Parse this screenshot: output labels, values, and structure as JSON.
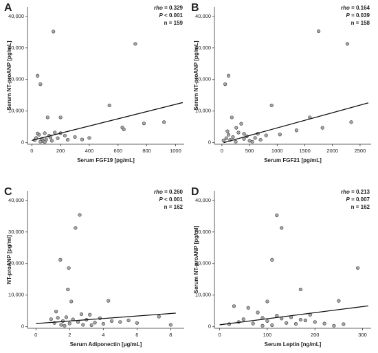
{
  "chart_data": [
    {
      "type": "scatter",
      "panel": "A",
      "color": "#a6a6a6",
      "stats": [
        {
          "symbol": "rho",
          "text": " = 0.329"
        },
        {
          "symbol": "P",
          "text": " < 0.001"
        },
        {
          "text": "n = 159"
        }
      ],
      "xlabel": "Serum FGF19 [pg/mL]",
      "ylabel": "Serum NT-proANP [pg/mL]",
      "xlim": [
        -30,
        1060
      ],
      "ylim": [
        -500,
        43000
      ],
      "xticks": [
        0,
        200,
        400,
        600,
        800,
        1000
      ],
      "yticks": [
        0,
        {
          "value": 10000,
          "label": "10,000"
        },
        {
          "value": 20000,
          "label": "20,000"
        },
        {
          "value": 30000,
          "label": "30,000"
        },
        {
          "value": 40000,
          "label": "40,000"
        }
      ],
      "x": [
        150,
        40,
        60,
        720,
        540,
        630,
        640,
        780,
        920,
        110,
        200,
        230,
        300,
        400,
        20,
        30,
        50,
        70,
        80,
        90,
        100,
        120,
        140,
        160,
        180,
        250,
        60,
        40,
        130,
        350,
        90,
        200
      ],
      "values": [
        35200,
        21200,
        18500,
        31300,
        11800,
        4800,
        4200,
        6100,
        6500,
        8000,
        8000,
        2200,
        1800,
        1500,
        800,
        1500,
        2500,
        1200,
        500,
        3000,
        1000,
        2200,
        600,
        3200,
        1400,
        900,
        300,
        2900,
        1700,
        1000,
        200,
        3000
      ],
      "fit": {
        "x": [
          0,
          1050
        ],
        "values": [
          700,
          12700
        ]
      }
    },
    {
      "type": "scatter",
      "panel": "B",
      "color": "#a6a6a6",
      "stats": [
        {
          "symbol": "rho",
          "text": " = 0.164"
        },
        {
          "symbol": "P",
          "text": " = 0.039"
        },
        {
          "text": "n = 158"
        }
      ],
      "xlabel": "Serum FGF21 [pg/mL]",
      "ylabel": "Serum NT-proANP [pg/mL]",
      "xlim": [
        -135,
        2700
      ],
      "ylim": [
        -500,
        43000
      ],
      "xticks": [
        0,
        500,
        1000,
        1500,
        2000,
        2500
      ],
      "yticks": [
        0,
        {
          "value": 10000,
          "label": "10,000"
        },
        {
          "value": 20000,
          "label": "20,000"
        },
        {
          "value": 30000,
          "label": "30,000"
        },
        {
          "value": 40000,
          "label": "40,000"
        }
      ],
      "x": [
        1750,
        120,
        60,
        2270,
        900,
        1590,
        1820,
        1350,
        2340,
        1050,
        180,
        260,
        350,
        400,
        30,
        80,
        120,
        150,
        200,
        250,
        300,
        400,
        450,
        500,
        600,
        700,
        800,
        100,
        550,
        650
      ],
      "values": [
        35300,
        21200,
        18500,
        31300,
        11800,
        8000,
        4700,
        3900,
        6500,
        2600,
        8000,
        4700,
        6000,
        2800,
        700,
        1400,
        2500,
        900,
        1800,
        300,
        3200,
        1200,
        2000,
        600,
        1500,
        900,
        2300,
        3600,
        300,
        2800
      ],
      "fit": {
        "x": [
          30,
          2650
        ],
        "values": [
          0,
          12600
        ]
      }
    },
    {
      "type": "scatter",
      "panel": "C",
      "color": "#a6a6a6",
      "stats": [
        {
          "symbol": "rho",
          "text": " = 0.260"
        },
        {
          "symbol": "P",
          "text": " < 0.001"
        },
        {
          "text": "n = 162"
        }
      ],
      "xlabel": "Serum Adiponectin [μg/mL]",
      "ylabel": "NT-proANP [pg/ml]",
      "xlim": [
        -0.5,
        8.8
      ],
      "ylim": [
        -500,
        43000
      ],
      "xticks": [
        0,
        2,
        4,
        6,
        8
      ],
      "yticks": [
        0,
        {
          "value": 10000,
          "label": "10,000"
        },
        {
          "value": 20000,
          "label": "20,000"
        },
        {
          "value": 30000,
          "label": "30,000"
        },
        {
          "value": 40000,
          "label": "40,000"
        }
      ],
      "x": [
        2.6,
        2.35,
        1.45,
        1.95,
        1.9,
        2.1,
        4.3,
        1.2,
        3.2,
        0.9,
        1.1,
        1.3,
        1.5,
        1.6,
        1.8,
        2.0,
        2.2,
        2.5,
        2.8,
        3.0,
        3.5,
        3.8,
        4.0,
        4.5,
        5.0,
        5.5,
        6.0,
        7.3,
        8.0,
        2.7,
        1.7,
        3.3
      ],
      "values": [
        35400,
        31300,
        21200,
        18600,
        11800,
        8000,
        8200,
        4800,
        3800,
        2400,
        1200,
        2800,
        600,
        1800,
        3000,
        1000,
        2300,
        1500,
        600,
        2200,
        1300,
        2700,
        900,
        1800,
        1500,
        2000,
        1200,
        3200,
        600,
        4000,
        300,
        500
      ],
      "fit": {
        "x": [
          0,
          8.3
        ],
        "values": [
          1000,
          4300
        ]
      }
    },
    {
      "type": "scatter",
      "panel": "D",
      "color": "#a6a6a6",
      "stats": [
        {
          "symbol": "rho",
          "text": " = 0.213"
        },
        {
          "symbol": "P",
          "text": " = 0.007"
        },
        {
          "text": "n = 162"
        }
      ],
      "xlabel": "Serum Leptin [ng/mL]",
      "ylabel": "Serum NT-proANP [pg/ml]",
      "xlim": [
        -11,
        318
      ],
      "ylim": [
        -500,
        43000
      ],
      "xticks": [
        0,
        100,
        200,
        300
      ],
      "yticks": [
        0,
        {
          "value": 10000,
          "label": "10,000"
        },
        {
          "value": 20000,
          "label": "20,000"
        },
        {
          "value": 30000,
          "label": "30,000"
        },
        {
          "value": 40000,
          "label": "40,000"
        }
      ],
      "x": [
        120,
        130,
        110,
        290,
        170,
        100,
        250,
        30,
        60,
        80,
        190,
        20,
        40,
        50,
        70,
        90,
        100,
        110,
        130,
        140,
        150,
        160,
        180,
        200,
        220,
        240,
        260,
        90,
        120,
        170
      ],
      "values": [
        35300,
        31300,
        21200,
        18600,
        11800,
        8000,
        8200,
        6500,
        6000,
        4500,
        3800,
        800,
        1500,
        2400,
        1000,
        2800,
        1800,
        500,
        2600,
        1200,
        3000,
        900,
        2000,
        1500,
        1000,
        300,
        800,
        300,
        3500,
        2200
      ],
      "fit": {
        "x": [
          0,
          312
        ],
        "values": [
          600,
          6600
        ]
      }
    }
  ]
}
